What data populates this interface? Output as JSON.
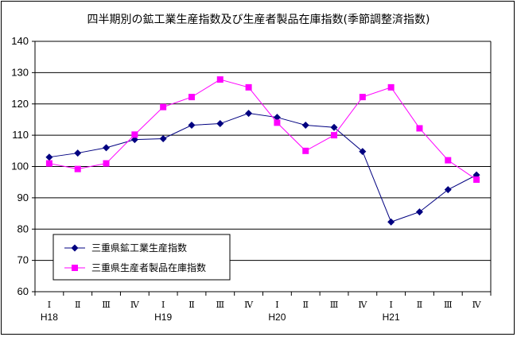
{
  "colors": {
    "series1": "#000080",
    "series2": "#FF00FF",
    "grid": "#000000",
    "background": "#ffffff"
  },
  "chart_data": {
    "type": "line",
    "title": "四半期別の鉱工業生産指数及び生産者製品在庫指数(季節調整済指数)",
    "ylim": [
      60,
      140
    ],
    "yticks": [
      "60",
      "70",
      "80",
      "90",
      "100",
      "110",
      "120",
      "130",
      "140"
    ],
    "categories": [
      "Ⅰ",
      "Ⅱ",
      "Ⅲ",
      "Ⅳ",
      "Ⅰ",
      "Ⅱ",
      "Ⅲ",
      "Ⅳ",
      "Ⅰ",
      "Ⅱ",
      "Ⅲ",
      "Ⅳ",
      "Ⅰ",
      "Ⅱ",
      "Ⅲ",
      "Ⅳ"
    ],
    "year_labels": [
      {
        "index": 0,
        "label": "H18"
      },
      {
        "index": 4,
        "label": "H19"
      },
      {
        "index": 8,
        "label": "H20"
      },
      {
        "index": 12,
        "label": "H21"
      }
    ],
    "grid": true,
    "legend_position": "bottom-left",
    "series": [
      {
        "name": "三重県鉱工業生産指数",
        "marker": "diamond",
        "values": [
          103.0,
          104.3,
          106.0,
          108.6,
          108.9,
          113.2,
          113.7,
          117.0,
          115.7,
          113.2,
          112.5,
          104.8,
          82.3,
          85.5,
          92.6,
          97.3
        ]
      },
      {
        "name": "三重県生産者製品在庫指数",
        "marker": "square",
        "values": [
          101.0,
          99.2,
          101.0,
          110.2,
          119.0,
          122.2,
          127.8,
          125.3,
          114.0,
          105.0,
          110.0,
          122.2,
          125.3,
          112.2,
          102.0,
          95.8
        ]
      }
    ]
  }
}
